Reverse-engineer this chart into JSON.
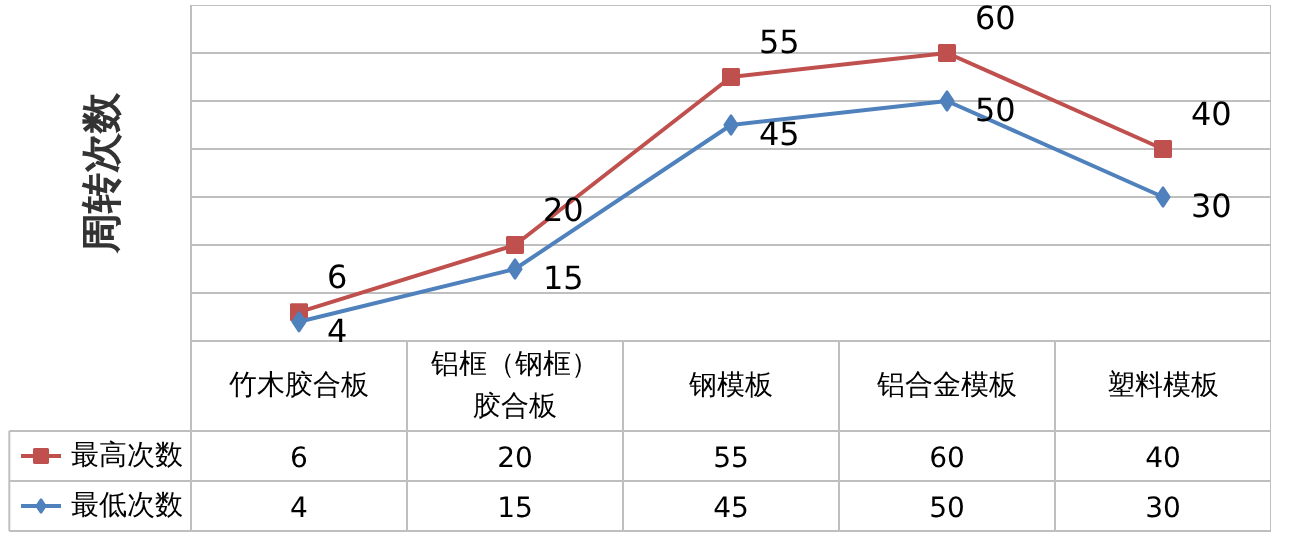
{
  "chart_data": {
    "type": "line",
    "ylabel": "周转次数",
    "categories": [
      "竹木胶合板",
      "铝框（钢框）胶合板",
      "钢模板",
      "铝合金模板",
      "塑料模板"
    ],
    "series": [
      {
        "name": "最高次数",
        "color": "#c0504d",
        "values": [
          6,
          20,
          55,
          60,
          40
        ],
        "value_labels": [
          "6",
          "20",
          "55",
          "60",
          "40"
        ],
        "marker": "square"
      },
      {
        "name": "最低次数",
        "color": "#4f81bd",
        "values": [
          4,
          15,
          45,
          50,
          30
        ],
        "value_labels": [
          "4",
          "15",
          "45",
          "50",
          "30"
        ],
        "marker": "diamond"
      }
    ],
    "ylim": [
      0,
      70
    ],
    "yticks": [
      {
        "value": 0,
        "label": null
      },
      {
        "value": 10,
        "label": null
      },
      {
        "value": 20,
        "label": null
      },
      {
        "value": 30,
        "label": null
      },
      {
        "value": 40,
        "label": null
      },
      {
        "value": 50,
        "label": null
      },
      {
        "value": 60,
        "label": null
      },
      {
        "value": 70,
        "label": null
      }
    ],
    "grid": "y",
    "tick_labels": "x",
    "data_labels": true,
    "legend": "bottom left"
  }
}
